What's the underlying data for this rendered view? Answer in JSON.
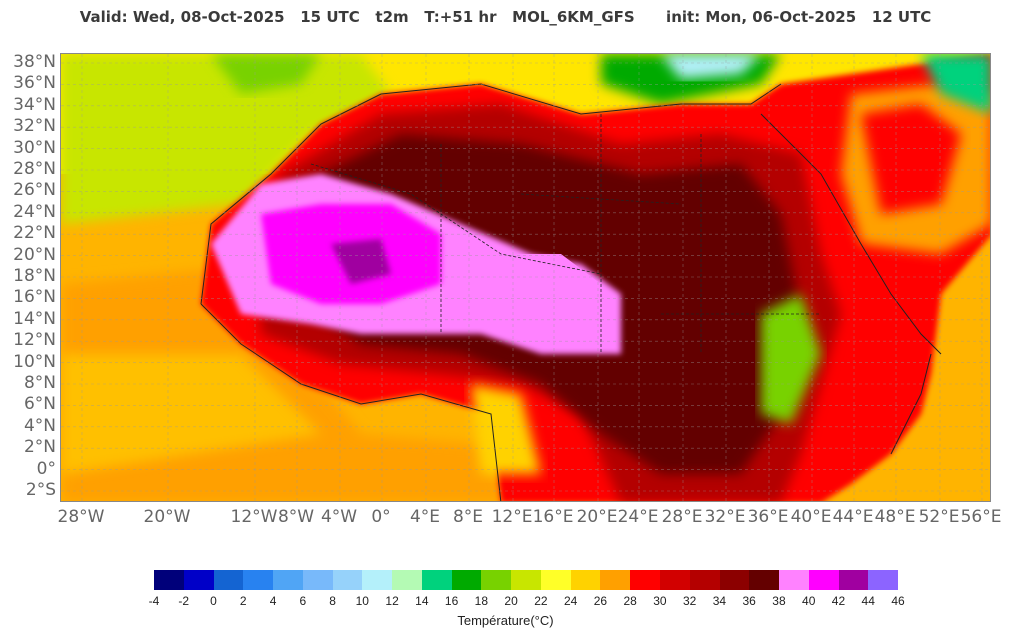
{
  "header": {
    "title": "Valid: Wed, 08-Oct-2025   15 UTC   t2m   T:+51 hr   MOL_6KM_GFS      init: Mon, 06-Oct-2025   12 UTC"
  },
  "map": {
    "lat_labels": [
      "38°N",
      "36°N",
      "34°N",
      "32°N",
      "30°N",
      "28°N",
      "26°N",
      "24°N",
      "22°N",
      "20°N",
      "18°N",
      "16°N",
      "14°N",
      "12°N",
      "10°N",
      "8°N",
      "6°N",
      "4°N",
      "2°N",
      "0°",
      "2°S"
    ],
    "lon_labels": [
      "28°W",
      "20°W",
      "12°W",
      "8°W",
      "4°W",
      "0°",
      "4°E",
      "8°E",
      "12°E",
      "16°E",
      "20°E",
      "24°E",
      "28°E",
      "32°E",
      "36°E",
      "40°E",
      "44°E",
      "48°E",
      "52°E",
      "56°E"
    ],
    "lat_range": [
      -3,
      39
    ],
    "lon_range": [
      -30,
      56
    ],
    "grid": "dashed"
  },
  "legend": {
    "title": "Température(°C)",
    "ticks": [
      "-4",
      "-2",
      "0",
      "2",
      "4",
      "6",
      "8",
      "10",
      "12",
      "14",
      "16",
      "18",
      "20",
      "22",
      "24",
      "26",
      "28",
      "30",
      "32",
      "34",
      "36",
      "38",
      "40",
      "42",
      "44",
      "46"
    ],
    "colors": [
      "#00007a",
      "#0000c8",
      "#1464d2",
      "#2882f0",
      "#50a5f5",
      "#78b9fa",
      "#96d2fa",
      "#b4f0fa",
      "#b4fab4",
      "#00d27d",
      "#00aa00",
      "#78d200",
      "#c8e600",
      "#ffff28",
      "#ffd200",
      "#ffa000",
      "#ff0000",
      "#d20000",
      "#b40000",
      "#8c0000",
      "#640000",
      "#ff82ff",
      "#ff00ff",
      "#a000a0",
      "#8c64ff"
    ]
  }
}
